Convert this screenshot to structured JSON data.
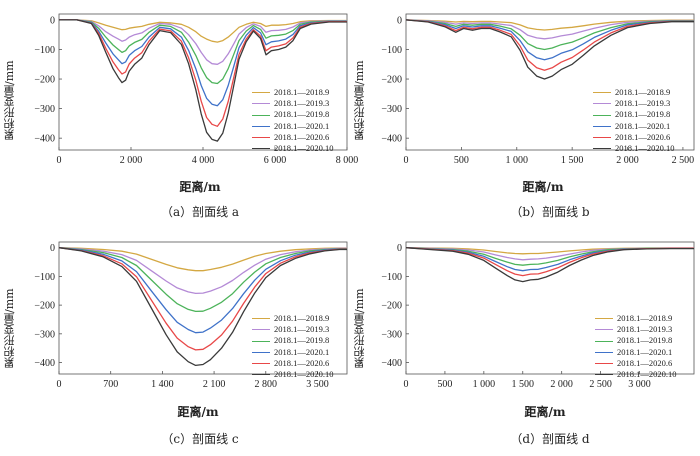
{
  "colors": [
    "#d4a843",
    "#b48ad6",
    "#4cb35a",
    "#3f72c9",
    "#e84848",
    "#3a3a3a"
  ],
  "chart_data": [
    {
      "type": "line",
      "caption": "（a）剖面线 a",
      "xlabel": "距离/m",
      "ylabel": "累积形变量/mm",
      "xlim": [
        0,
        8000
      ],
      "ylim": [
        -440,
        20
      ],
      "xticks": [
        0,
        2000,
        4000,
        6000,
        8000
      ],
      "xtick_labels": [
        "0",
        "2 000",
        "4 000",
        "6 000",
        "8 000"
      ],
      "yticks": [
        0,
        -100,
        -200,
        -300,
        -400
      ],
      "ytick_labels": [
        "0",
        "−100",
        "−200",
        "−300",
        "−400"
      ],
      "legend": [
        "2018.1—2018.9",
        "2018.1—2019.3",
        "2018.1—2019.8",
        "2018.1—2020.1",
        "2018.1—2020.6",
        "2018.1—2020.10"
      ],
      "x": [
        0,
        500,
        900,
        1100,
        1300,
        1500,
        1650,
        1750,
        1850,
        1950,
        2100,
        2300,
        2500,
        2800,
        3100,
        3400,
        3600,
        3800,
        3950,
        4100,
        4250,
        4400,
        4550,
        4700,
        4850,
        5000,
        5200,
        5400,
        5600,
        5750,
        5900,
        6100,
        6300,
        6500,
        6700,
        7000,
        7500,
        8000
      ],
      "series": [
        {
          "name": "2018.1—2018.9",
          "values": [
            0,
            0,
            -3,
            -10,
            -18,
            -25,
            -30,
            -33,
            -32,
            -28,
            -25,
            -22,
            -15,
            -8,
            -10,
            -15,
            -25,
            -40,
            -55,
            -65,
            -72,
            -75,
            -70,
            -58,
            -42,
            -25,
            -15,
            -8,
            -12,
            -22,
            -18,
            -18,
            -16,
            -12,
            -6,
            -3,
            -2,
            -2
          ]
        },
        {
          "name": "2018.1—2019.3",
          "values": [
            0,
            0,
            -5,
            -20,
            -40,
            -55,
            -65,
            -72,
            -68,
            -58,
            -50,
            -44,
            -28,
            -12,
            -15,
            -28,
            -50,
            -80,
            -110,
            -135,
            -148,
            -150,
            -140,
            -115,
            -82,
            -48,
            -26,
            -13,
            -22,
            -42,
            -36,
            -35,
            -32,
            -24,
            -10,
            -5,
            -3,
            -3
          ]
        },
        {
          "name": "2018.1—2019.8",
          "values": [
            0,
            0,
            -7,
            -28,
            -58,
            -85,
            -100,
            -110,
            -104,
            -88,
            -76,
            -66,
            -42,
            -18,
            -22,
            -42,
            -75,
            -120,
            -162,
            -195,
            -212,
            -215,
            -200,
            -165,
            -118,
            -70,
            -38,
            -19,
            -32,
            -62,
            -54,
            -52,
            -48,
            -36,
            -15,
            -7,
            -4,
            -4
          ]
        },
        {
          "name": "2018.1—2020.1",
          "values": [
            0,
            0,
            -9,
            -38,
            -78,
            -115,
            -135,
            -148,
            -142,
            -120,
            -104,
            -90,
            -58,
            -25,
            -30,
            -58,
            -103,
            -165,
            -222,
            -265,
            -285,
            -290,
            -270,
            -222,
            -159,
            -94,
            -52,
            -26,
            -44,
            -84,
            -74,
            -71,
            -65,
            -49,
            -20,
            -10,
            -5,
            -5
          ]
        },
        {
          "name": "2018.1—2020.6",
          "values": [
            0,
            0,
            -11,
            -45,
            -96,
            -142,
            -168,
            -183,
            -176,
            -149,
            -129,
            -111,
            -72,
            -31,
            -37,
            -72,
            -128,
            -204,
            -275,
            -330,
            -353,
            -360,
            -335,
            -276,
            -197,
            -117,
            -65,
            -33,
            -55,
            -104,
            -92,
            -88,
            -81,
            -61,
            -25,
            -12,
            -6,
            -6
          ]
        },
        {
          "name": "2018.1—2020.10",
          "values": [
            0,
            0,
            -12,
            -52,
            -110,
            -165,
            -195,
            -212,
            -204,
            -173,
            -150,
            -129,
            -84,
            -36,
            -43,
            -83,
            -148,
            -236,
            -318,
            -380,
            -404,
            -410,
            -383,
            -315,
            -225,
            -133,
            -74,
            -38,
            -63,
            -118,
            -104,
            -100,
            -92,
            -70,
            -29,
            -14,
            -7,
            -7
          ]
        }
      ]
    },
    {
      "type": "line",
      "caption": "（b）剖面线 b",
      "xlabel": "距离/m",
      "ylabel": "累积形变量/mm",
      "xlim": [
        0,
        2600
      ],
      "ylim": [
        -440,
        20
      ],
      "xticks": [
        0,
        500,
        1000,
        1500,
        2000,
        2500
      ],
      "xtick_labels": [
        "0",
        "500",
        "1 000",
        "1 500",
        "2 000",
        "2 500"
      ],
      "yticks": [
        0,
        -100,
        -200,
        -300,
        -400
      ],
      "ytick_labels": [
        "0",
        "−100",
        "−200",
        "−300",
        "−400"
      ],
      "legend": [
        "2018.1—2018.9",
        "2018.1—2019.3",
        "2018.1—2019.8",
        "2018.1—2020.1",
        "2018.1—2020.6",
        "2018.1—2020.10"
      ],
      "x": [
        0,
        200,
        350,
        450,
        520,
        600,
        680,
        760,
        850,
        950,
        1030,
        1100,
        1180,
        1250,
        1320,
        1400,
        1500,
        1600,
        1700,
        1850,
        2000,
        2200,
        2400,
        2600
      ],
      "series": [
        {
          "name": "2018.1—2018.9",
          "values": [
            0,
            -2,
            -4,
            -7,
            -5,
            -6,
            -5,
            -5,
            -7,
            -9,
            -17,
            -27,
            -32,
            -34,
            -32,
            -28,
            -25,
            -20,
            -14,
            -8,
            -4,
            -2,
            -1,
            -1
          ]
        },
        {
          "name": "2018.1—2019.3",
          "values": [
            0,
            -3,
            -8,
            -14,
            -10,
            -12,
            -10,
            -10,
            -14,
            -19,
            -33,
            -52,
            -61,
            -64,
            -61,
            -54,
            -48,
            -38,
            -28,
            -16,
            -8,
            -4,
            -2,
            -2
          ]
        },
        {
          "name": "2018.1—2019.8",
          "values": [
            0,
            -4,
            -12,
            -22,
            -15,
            -18,
            -15,
            -15,
            -21,
            -30,
            -52,
            -80,
            -95,
            -100,
            -95,
            -84,
            -75,
            -60,
            -44,
            -26,
            -13,
            -6,
            -3,
            -3
          ]
        },
        {
          "name": "2018.1—2020.1",
          "values": [
            0,
            -5,
            -16,
            -29,
            -20,
            -24,
            -20,
            -20,
            -28,
            -39,
            -70,
            -108,
            -128,
            -135,
            -128,
            -113,
            -101,
            -81,
            -59,
            -35,
            -17,
            -8,
            -4,
            -4
          ]
        },
        {
          "name": "2018.1—2020.6",
          "values": [
            0,
            -6,
            -20,
            -36,
            -25,
            -30,
            -25,
            -25,
            -35,
            -49,
            -88,
            -136,
            -162,
            -170,
            -162,
            -143,
            -127,
            -102,
            -75,
            -44,
            -22,
            -10,
            -5,
            -5
          ]
        },
        {
          "name": "2018.1—2020.10",
          "values": [
            0,
            -7,
            -23,
            -42,
            -29,
            -35,
            -29,
            -29,
            -41,
            -57,
            -103,
            -160,
            -190,
            -200,
            -190,
            -168,
            -150,
            -120,
            -88,
            -52,
            -26,
            -12,
            -6,
            -6
          ]
        }
      ]
    },
    {
      "type": "line",
      "caption": "（c）剖面线 c",
      "xlabel": "距离/m",
      "ylabel": "累积形变量/mm",
      "xlim": [
        0,
        3900
      ],
      "ylim": [
        -440,
        20
      ],
      "xticks": [
        0,
        700,
        1400,
        2100,
        2800,
        3500
      ],
      "xtick_labels": [
        "0",
        "700",
        "1 400",
        "2 100",
        "2 800",
        "3 500"
      ],
      "yticks": [
        0,
        -100,
        -200,
        -300,
        -400
      ],
      "ytick_labels": [
        "0",
        "−100",
        "−200",
        "−300",
        "−400"
      ],
      "legend": [
        "2018.1—2018.9",
        "2018.1—2019.3",
        "2018.1—2019.8",
        "2018.1—2020.1",
        "2018.1—2020.6",
        "2018.1—2020.10"
      ],
      "x": [
        0,
        300,
        600,
        850,
        1050,
        1250,
        1450,
        1600,
        1750,
        1850,
        1950,
        2050,
        2200,
        2350,
        2500,
        2650,
        2800,
        3000,
        3200,
        3400,
        3600,
        3800,
        3900
      ],
      "series": [
        {
          "name": "2018.1—2018.9",
          "values": [
            0,
            -2,
            -6,
            -12,
            -22,
            -40,
            -58,
            -70,
            -77,
            -80,
            -80,
            -76,
            -68,
            -57,
            -43,
            -30,
            -20,
            -12,
            -7,
            -4,
            -2,
            -1,
            -1
          ]
        },
        {
          "name": "2018.1—2019.3",
          "values": [
            0,
            -4,
            -12,
            -24,
            -44,
            -80,
            -116,
            -140,
            -154,
            -159,
            -158,
            -151,
            -136,
            -114,
            -86,
            -61,
            -40,
            -24,
            -14,
            -8,
            -4,
            -2,
            -2
          ]
        },
        {
          "name": "2018.1—2019.8",
          "values": [
            0,
            -6,
            -17,
            -34,
            -62,
            -112,
            -162,
            -195,
            -215,
            -222,
            -221,
            -211,
            -190,
            -160,
            -120,
            -85,
            -56,
            -34,
            -20,
            -11,
            -6,
            -3,
            -3
          ]
        },
        {
          "name": "2018.1—2020.1",
          "values": [
            0,
            -8,
            -23,
            -46,
            -83,
            -150,
            -216,
            -260,
            -285,
            -296,
            -294,
            -280,
            -252,
            -212,
            -160,
            -113,
            -75,
            -45,
            -26,
            -15,
            -8,
            -4,
            -4
          ]
        },
        {
          "name": "2018.1—2020.6",
          "values": [
            0,
            -10,
            -28,
            -56,
            -101,
            -182,
            -263,
            -315,
            -345,
            -356,
            -354,
            -338,
            -304,
            -256,
            -194,
            -137,
            -90,
            -54,
            -32,
            -18,
            -10,
            -5,
            -5
          ]
        },
        {
          "name": "2018.1—2020.10",
          "values": [
            0,
            -11,
            -32,
            -65,
            -117,
            -210,
            -303,
            -363,
            -397,
            -410,
            -407,
            -390,
            -350,
            -295,
            -223,
            -158,
            -104,
            -62,
            -37,
            -21,
            -11,
            -6,
            -6
          ]
        }
      ]
    },
    {
      "type": "line",
      "caption": "（d）剖面线 d",
      "xlabel": "距离/m",
      "ylabel": "累积形变量/mm",
      "xlim": [
        0,
        3700
      ],
      "ylim": [
        -440,
        20
      ],
      "xticks": [
        0,
        500,
        1000,
        1500,
        2000,
        2500,
        3000
      ],
      "xtick_labels": [
        "0",
        "500",
        "1 000",
        "1 500",
        "2 000",
        "2 500",
        "3 000"
      ],
      "yticks": [
        0,
        -100,
        -200,
        -300,
        -400
      ],
      "ytick_labels": [
        "0",
        "−100",
        "−200",
        "−300",
        "−400"
      ],
      "legend": [
        "2018.1—2018.9",
        "2018.1—2019.3",
        "2018.1—2019.8",
        "2018.1—2020.1",
        "2018.1—2020.6",
        "2018.1—2020.10"
      ],
      "x": [
        0,
        300,
        600,
        800,
        1000,
        1150,
        1300,
        1400,
        1500,
        1600,
        1700,
        1800,
        1950,
        2100,
        2250,
        2400,
        2600,
        2800,
        3100,
        3400,
        3700
      ],
      "series": [
        {
          "name": "2018.1—2018.9",
          "values": [
            0,
            -1,
            -2,
            -4,
            -8,
            -13,
            -18,
            -20,
            -21,
            -20,
            -20,
            -18,
            -15,
            -11,
            -8,
            -5,
            -3,
            -2,
            -1,
            -1,
            -1
          ]
        },
        {
          "name": "2018.1—2019.3",
          "values": [
            0,
            -2,
            -4,
            -8,
            -15,
            -25,
            -34,
            -39,
            -42,
            -40,
            -39,
            -36,
            -30,
            -22,
            -15,
            -9,
            -5,
            -3,
            -2,
            -1,
            -1
          ]
        },
        {
          "name": "2018.1—2019.8",
          "values": [
            0,
            -3,
            -6,
            -12,
            -23,
            -37,
            -50,
            -58,
            -61,
            -58,
            -57,
            -53,
            -44,
            -32,
            -22,
            -14,
            -7,
            -4,
            -2,
            -2,
            -2
          ]
        },
        {
          "name": "2018.1—2020.1",
          "values": [
            0,
            -4,
            -8,
            -16,
            -30,
            -48,
            -66,
            -76,
            -80,
            -76,
            -75,
            -69,
            -58,
            -42,
            -29,
            -18,
            -10,
            -5,
            -3,
            -2,
            -2
          ]
        },
        {
          "name": "2018.1—2020.6",
          "values": [
            0,
            -5,
            -10,
            -19,
            -36,
            -58,
            -80,
            -92,
            -97,
            -92,
            -91,
            -84,
            -70,
            -51,
            -35,
            -22,
            -12,
            -6,
            -3,
            -2,
            -2
          ]
        },
        {
          "name": "2018.1—2020.10",
          "values": [
            0,
            -6,
            -12,
            -23,
            -44,
            -71,
            -97,
            -112,
            -118,
            -112,
            -110,
            -102,
            -85,
            -62,
            -43,
            -27,
            -14,
            -7,
            -4,
            -3,
            -3
          ]
        }
      ]
    }
  ]
}
